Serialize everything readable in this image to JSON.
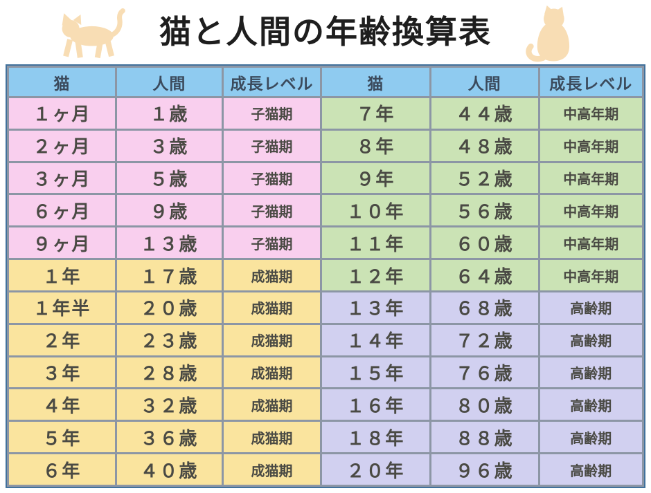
{
  "title": "猫と人間の年齢換算表",
  "icons": {
    "left_icon": "walking-cat-icon",
    "right_icon": "sitting-cat-icon",
    "cat_color": "#F8DDB4"
  },
  "colors": {
    "header_bg": "#8FCBF0",
    "header_text": "#3B4A5C",
    "kitten": "#F9CFEE",
    "adult": "#FAE49E",
    "middle": "#CBE3B5",
    "senior": "#D1D0F0",
    "grid_border": "#8C96A5",
    "outer_border": "#41719C",
    "cell_text": "#4A4A44",
    "title_text": "#1E1E1E"
  },
  "stage_labels": {
    "kitten": "子猫期",
    "adult": "成猫期",
    "middle": "中高年期",
    "senior": "高齢期"
  },
  "table": {
    "headers": [
      "猫",
      "人間",
      "成長レベル",
      "猫",
      "人間",
      "成長レベル"
    ],
    "rows": [
      {
        "cells": [
          "１ヶ月",
          "１歳",
          "子猫期",
          "７年",
          "４４歳",
          "中高年期"
        ],
        "left_stage": "kitten",
        "right_stage": "middle"
      },
      {
        "cells": [
          "２ヶ月",
          "３歳",
          "子猫期",
          "８年",
          "４８歳",
          "中高年期"
        ],
        "left_stage": "kitten",
        "right_stage": "middle"
      },
      {
        "cells": [
          "３ヶ月",
          "５歳",
          "子猫期",
          "９年",
          "５２歳",
          "中高年期"
        ],
        "left_stage": "kitten",
        "right_stage": "middle"
      },
      {
        "cells": [
          "６ヶ月",
          "９歳",
          "子猫期",
          "１０年",
          "５６歳",
          "中高年期"
        ],
        "left_stage": "kitten",
        "right_stage": "middle"
      },
      {
        "cells": [
          "９ヶ月",
          "１３歳",
          "子猫期",
          "１１年",
          "６０歳",
          "中高年期"
        ],
        "left_stage": "kitten",
        "right_stage": "middle"
      },
      {
        "cells": [
          "１年",
          "１７歳",
          "成猫期",
          "１２年",
          "６４歳",
          "中高年期"
        ],
        "left_stage": "adult",
        "right_stage": "middle"
      },
      {
        "cells": [
          "１年半",
          "２０歳",
          "成猫期",
          "１３年",
          "６８歳",
          "高齢期"
        ],
        "left_stage": "adult",
        "right_stage": "senior"
      },
      {
        "cells": [
          "２年",
          "２３歳",
          "成猫期",
          "１４年",
          "７２歳",
          "高齢期"
        ],
        "left_stage": "adult",
        "right_stage": "senior"
      },
      {
        "cells": [
          "３年",
          "２８歳",
          "成猫期",
          "１５年",
          "７６歳",
          "高齢期"
        ],
        "left_stage": "adult",
        "right_stage": "senior"
      },
      {
        "cells": [
          "４年",
          "３２歳",
          "成猫期",
          "１６年",
          "８０歳",
          "高齢期"
        ],
        "left_stage": "adult",
        "right_stage": "senior"
      },
      {
        "cells": [
          "５年",
          "３６歳",
          "成猫期",
          "１８年",
          "８８歳",
          "高齢期"
        ],
        "left_stage": "adult",
        "right_stage": "senior"
      },
      {
        "cells": [
          "６年",
          "４０歳",
          "成猫期",
          "２０年",
          "９６歳",
          "高齢期"
        ],
        "left_stage": "adult",
        "right_stage": "senior"
      }
    ]
  },
  "chart_data": {
    "type": "table",
    "title": "猫と人間の年齢換算表",
    "columns": [
      "猫",
      "人間",
      "成長レベル"
    ],
    "rows": [
      [
        "１ヶ月",
        "１歳",
        "子猫期"
      ],
      [
        "２ヶ月",
        "３歳",
        "子猫期"
      ],
      [
        "３ヶ月",
        "５歳",
        "子猫期"
      ],
      [
        "６ヶ月",
        "９歳",
        "子猫期"
      ],
      [
        "９ヶ月",
        "１３歳",
        "子猫期"
      ],
      [
        "１年",
        "１７歳",
        "成猫期"
      ],
      [
        "１年半",
        "２０歳",
        "成猫期"
      ],
      [
        "２年",
        "２３歳",
        "成猫期"
      ],
      [
        "３年",
        "２８歳",
        "成猫期"
      ],
      [
        "４年",
        "３２歳",
        "成猫期"
      ],
      [
        "５年",
        "３６歳",
        "成猫期"
      ],
      [
        "６年",
        "４０歳",
        "成猫期"
      ],
      [
        "７年",
        "４４歳",
        "中高年期"
      ],
      [
        "８年",
        "４８歳",
        "中高年期"
      ],
      [
        "９年",
        "５２歳",
        "中高年期"
      ],
      [
        "１０年",
        "５６歳",
        "中高年期"
      ],
      [
        "１１年",
        "６０歳",
        "中高年期"
      ],
      [
        "１２年",
        "６４歳",
        "中高年期"
      ],
      [
        "１３年",
        "６８歳",
        "高齢期"
      ],
      [
        "１４年",
        "７２歳",
        "高齢期"
      ],
      [
        "１５年",
        "７６歳",
        "高齢期"
      ],
      [
        "１６年",
        "８０歳",
        "高齢期"
      ],
      [
        "１８年",
        "８８歳",
        "高齢期"
      ],
      [
        "２０年",
        "９６歳",
        "高齢期"
      ]
    ],
    "group_colors": {
      "子猫期": "#F9CFEE",
      "成猫期": "#FAE49E",
      "中高年期": "#CBE3B5",
      "高齢期": "#D1D0F0"
    },
    "layout": "two side-by-side 3-column halves in one 6-column grid, 12 rows"
  }
}
